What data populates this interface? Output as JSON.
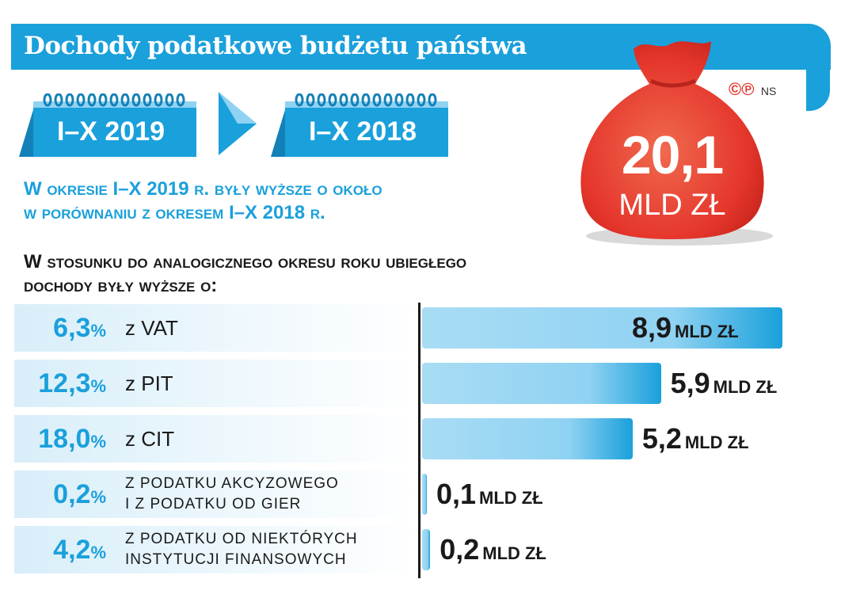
{
  "title": "Dochody podatkowe budżetu państwa",
  "periods": {
    "current": "I–X 2019",
    "previous": "I–X 2018"
  },
  "comparison_text": {
    "line1": "W okresie I–X 2019 r. były wyższe o około",
    "line2": "w porównaniu z okresem I–X 2018 r."
  },
  "bag": {
    "value": "20,1",
    "unit": "MLD ZŁ"
  },
  "credits": {
    "mark": "©℗",
    "author": "NS"
  },
  "heading": {
    "line1": "W stosunku do analogicznego okresu roku ubiegłego",
    "line2": "dochody były wyższe o:"
  },
  "colors": {
    "accent": "#1aa0db",
    "bag": "#e5362c",
    "bar_light": "#a9dcf5",
    "text": "#1a1a1a"
  },
  "chart_data": {
    "type": "bar",
    "orientation": "horizontal",
    "value_unit": "MLD ZŁ",
    "categories": [
      {
        "pct": "6,3",
        "pct_sign": "%",
        "label": [
          "z VAT"
        ],
        "value": 8.9,
        "value_text": "8,9"
      },
      {
        "pct": "12,3",
        "pct_sign": "%",
        "label": [
          "z PIT"
        ],
        "value": 5.9,
        "value_text": "5,9"
      },
      {
        "pct": "18,0",
        "pct_sign": "%",
        "label": [
          "z CIT"
        ],
        "value": 5.2,
        "value_text": "5,2"
      },
      {
        "pct": "0,2",
        "pct_sign": "%",
        "label": [
          "Z PODATKU AKCYZOWEGO",
          "I Z PODATKU OD GIER"
        ],
        "value": 0.1,
        "value_text": "0,1"
      },
      {
        "pct": "4,2",
        "pct_sign": "%",
        "label": [
          "Z PODATKU OD NIEKTÓRYCH",
          "INSTYTUCJI FINANSOWYCH"
        ],
        "value": 0.2,
        "value_text": "0,2"
      }
    ],
    "xlim": [
      0,
      8.9
    ]
  }
}
